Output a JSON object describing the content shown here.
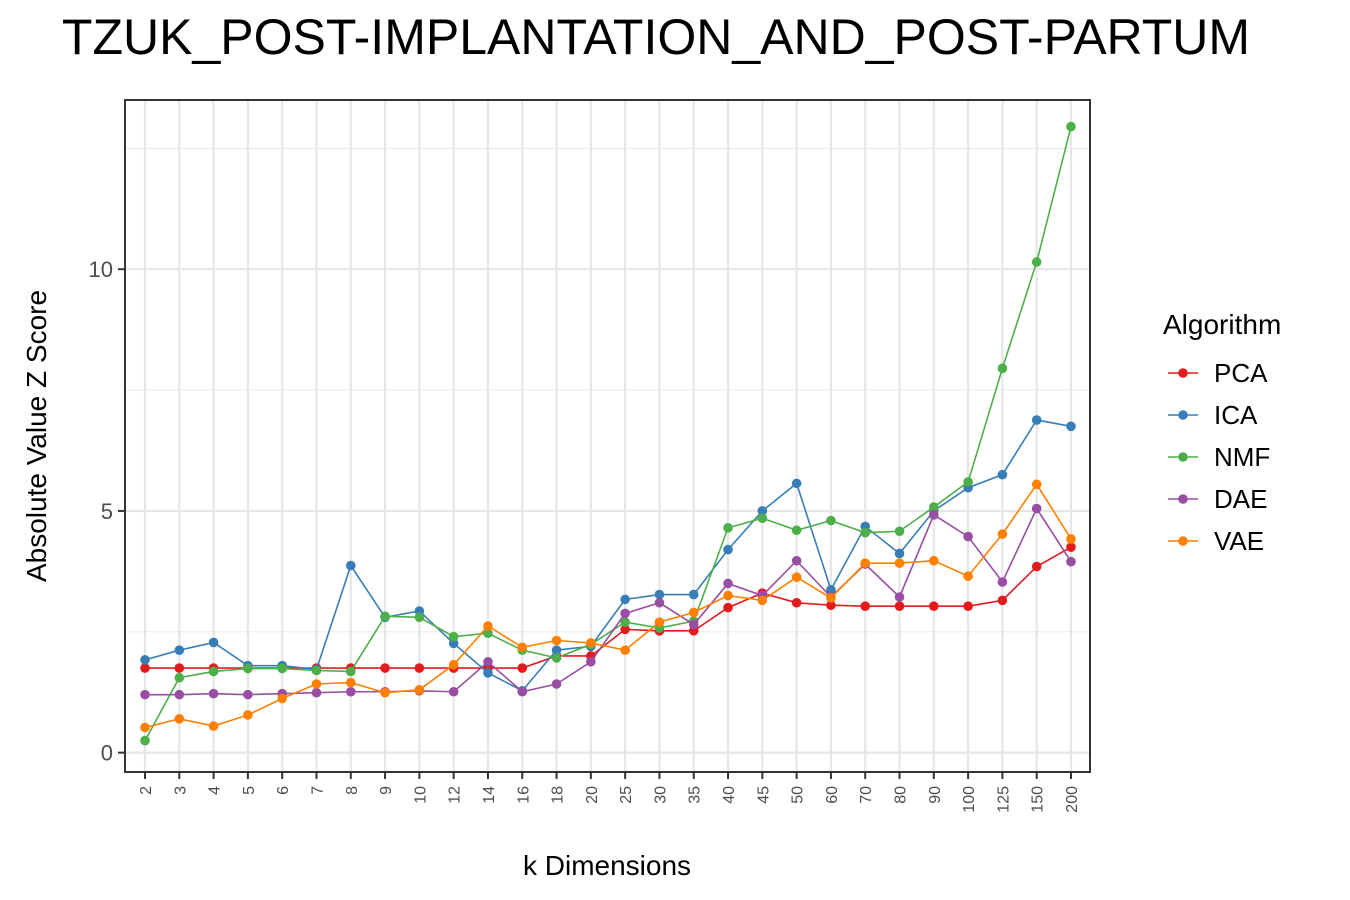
{
  "chart_data": {
    "type": "line",
    "title": "TZUK_POST-IMPLANTATION_AND_POST-PARTUM",
    "xlabel": "k Dimensions",
    "ylabel": "Absolute Value Z Score",
    "categories": [
      "2",
      "3",
      "4",
      "5",
      "6",
      "7",
      "8",
      "9",
      "10",
      "12",
      "14",
      "16",
      "18",
      "20",
      "25",
      "30",
      "35",
      "40",
      "45",
      "50",
      "60",
      "70",
      "80",
      "90",
      "100",
      "125",
      "150",
      "200"
    ],
    "ylim": [
      -0.4,
      13.5
    ],
    "yticks": [
      0,
      5,
      10
    ],
    "grid": true,
    "legend_title": "Algorithm",
    "legend_position": "right",
    "series": [
      {
        "name": "PCA",
        "color": "#e41a1c",
        "values": [
          1.75,
          1.75,
          1.75,
          1.75,
          1.75,
          1.75,
          1.75,
          1.75,
          1.75,
          1.75,
          1.75,
          1.75,
          2.0,
          2.0,
          2.55,
          2.52,
          2.52,
          3.0,
          3.3,
          3.1,
          3.05,
          3.03,
          3.03,
          3.03,
          3.03,
          3.15,
          3.85,
          4.25
        ]
      },
      {
        "name": "ICA",
        "color": "#377eb8",
        "values": [
          1.92,
          2.12,
          2.28,
          1.8,
          1.8,
          1.72,
          3.87,
          2.8,
          2.93,
          2.26,
          1.65,
          1.28,
          2.12,
          2.2,
          3.17,
          3.27,
          3.27,
          4.2,
          5.0,
          5.57,
          3.37,
          4.68,
          4.12,
          5.0,
          5.48,
          5.75,
          6.88,
          6.75
        ]
      },
      {
        "name": "NMF",
        "color": "#4daf4a",
        "values": [
          0.25,
          1.55,
          1.68,
          1.74,
          1.74,
          1.7,
          1.68,
          2.82,
          2.8,
          2.4,
          2.47,
          2.12,
          1.96,
          2.24,
          2.7,
          2.58,
          2.72,
          4.65,
          4.85,
          4.6,
          4.8,
          4.55,
          4.58,
          5.08,
          5.6,
          7.95,
          10.15,
          12.95
        ]
      },
      {
        "name": "DAE",
        "color": "#984ea3",
        "values": [
          1.2,
          1.2,
          1.22,
          1.2,
          1.22,
          1.24,
          1.26,
          1.26,
          1.28,
          1.26,
          1.88,
          1.26,
          1.42,
          1.88,
          2.88,
          3.1,
          2.65,
          3.5,
          3.25,
          3.97,
          3.22,
          3.9,
          3.22,
          4.92,
          4.47,
          3.53,
          5.05,
          3.95
        ]
      },
      {
        "name": "VAE",
        "color": "#ff7f00",
        "values": [
          0.52,
          0.7,
          0.55,
          0.78,
          1.12,
          1.42,
          1.45,
          1.24,
          1.3,
          1.82,
          2.62,
          2.18,
          2.32,
          2.27,
          2.12,
          2.7,
          2.9,
          3.25,
          3.15,
          3.63,
          3.2,
          3.92,
          3.92,
          3.97,
          3.65,
          4.52,
          5.55,
          4.42
        ]
      }
    ]
  }
}
